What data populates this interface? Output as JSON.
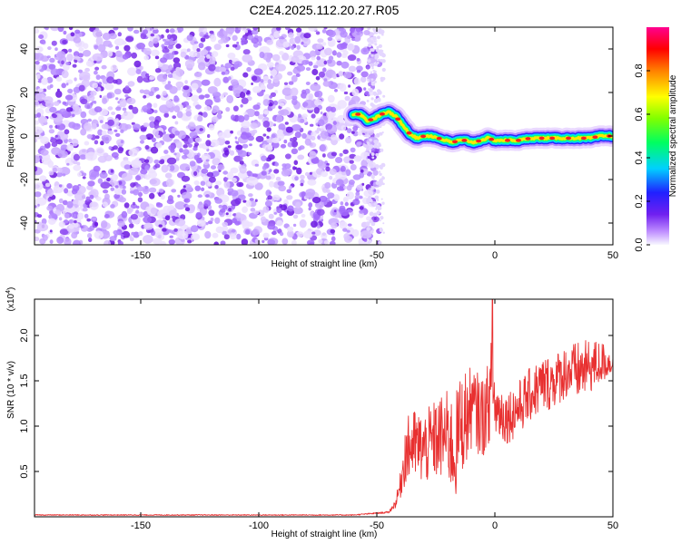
{
  "title": "C2E4.2025.112.20.27.R05",
  "chart_data": [
    {
      "type": "heatmap",
      "xlabel": "Height of straight line (km)",
      "ylabel": "Frequency (Hz)",
      "xlim": [
        -195,
        50
      ],
      "ylim": [
        -50,
        50
      ],
      "xticks": [
        -150,
        -100,
        -50,
        0,
        50
      ],
      "yticks": [
        -40,
        -20,
        0,
        20,
        40
      ],
      "noise_region_x": [
        -195,
        -52
      ],
      "ridge": {
        "x": [
          -60,
          -57,
          -54,
          -51,
          -48,
          -45,
          -42,
          -39,
          -36,
          -33,
          -30,
          -27,
          -24,
          -21,
          -18,
          -15,
          -12,
          -9,
          -6,
          -3,
          0,
          5,
          10,
          15,
          20,
          25,
          30,
          35,
          40,
          45,
          50
        ],
        "freq": [
          10,
          10,
          7,
          8,
          10,
          11,
          9,
          5,
          1,
          -1,
          0,
          0,
          -1,
          -2,
          -3,
          -2,
          -2,
          -3,
          -2,
          -1,
          -2,
          -2,
          -2,
          -1,
          -1,
          -1,
          -1,
          -1,
          -1,
          0,
          0
        ]
      },
      "colorbar": {
        "label": "Normalized spectral amplitude",
        "ticks": [
          "0.0",
          "0.2",
          "0.4",
          "0.6",
          "0.8"
        ],
        "range": [
          0,
          1
        ]
      }
    },
    {
      "type": "line",
      "series": [
        {
          "name": "SNR",
          "color": "#e83030"
        }
      ],
      "xlabel": "Height of straight line (km)",
      "ylabel": "SNR (10 * v/v)",
      "multiplier_label": "(x10",
      "multiplier_exp": "4",
      "multiplier_close": ")",
      "xlim": [
        -195,
        50
      ],
      "ylim": [
        0,
        2.4
      ],
      "xticks": [
        -150,
        -100,
        -50,
        0,
        50
      ],
      "yticks": [
        "0.5",
        "1.0",
        "1.5",
        "2.0"
      ],
      "envelope": {
        "x": [
          -195,
          -60,
          -45,
          -42,
          -40,
          -38,
          -35,
          -30,
          -25,
          -20,
          -17,
          -15,
          -12,
          -10,
          -5,
          -2,
          -1,
          0,
          5,
          10,
          15,
          20,
          25,
          30,
          35,
          40,
          45,
          50
        ],
        "mean": [
          0.02,
          0.02,
          0.05,
          0.15,
          0.35,
          0.7,
          0.8,
          0.75,
          0.85,
          0.9,
          0.7,
          1.0,
          1.1,
          1.2,
          1.1,
          1.3,
          1.5,
          1.2,
          1.1,
          1.2,
          1.35,
          1.45,
          1.5,
          1.6,
          1.6,
          1.65,
          1.7,
          1.7
        ],
        "spread": [
          0.005,
          0.005,
          0.01,
          0.05,
          0.15,
          0.35,
          0.4,
          0.4,
          0.45,
          0.5,
          0.6,
          0.55,
          0.55,
          0.45,
          0.45,
          0.45,
          0.8,
          0.35,
          0.3,
          0.3,
          0.3,
          0.32,
          0.3,
          0.3,
          0.33,
          0.3,
          0.25,
          0.1
        ]
      },
      "peak": {
        "x": -1,
        "y": 2.4
      }
    }
  ]
}
